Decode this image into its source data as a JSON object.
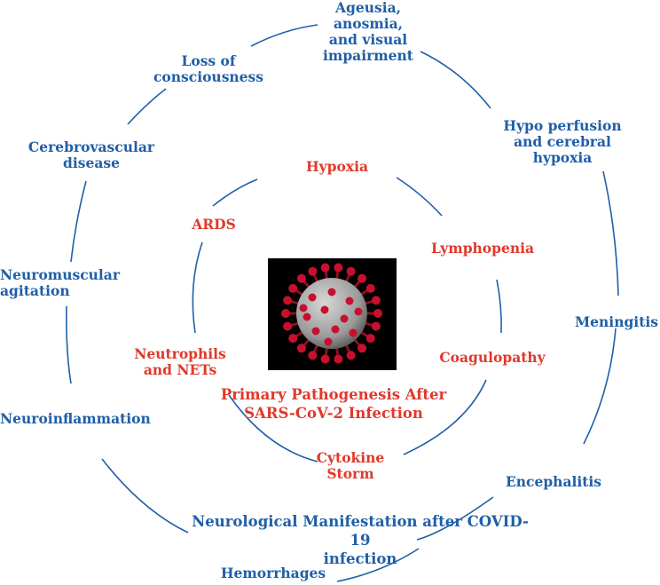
{
  "outer_labels": [
    {
      "key": "ageusia",
      "text": "Ageusia,\nanosmia,\nand visual\nimpairment"
    },
    {
      "key": "loss-consciousness",
      "text": "Loss of\nconsciousness"
    },
    {
      "key": "hypoperfusion",
      "text": "Hypo perfusion\nand cerebral\nhypoxia"
    },
    {
      "key": "cerebrovascular",
      "text": "Cerebrovascular\ndisease"
    },
    {
      "key": "neuromuscular",
      "text": "Neuromuscular\nagitation"
    },
    {
      "key": "meningitis",
      "text": "Meningitis"
    },
    {
      "key": "neuroinflammation",
      "text": "Neuroinflammation"
    },
    {
      "key": "encephalitis",
      "text": "Encephalitis"
    },
    {
      "key": "hemorrhages",
      "text": "Hemorrhages"
    }
  ],
  "outer_title": "Neurological Manifestation after COVID-19\ninfection",
  "inner_labels": [
    {
      "key": "hypoxia",
      "text": "Hypoxia"
    },
    {
      "key": "ards",
      "text": "ARDS"
    },
    {
      "key": "lymphopenia",
      "text": "Lymphopenia"
    },
    {
      "key": "neutrophils",
      "text": "Neutrophils\nand NETs"
    },
    {
      "key": "coagulopathy",
      "text": "Coagulopathy"
    },
    {
      "key": "cytokine-storm",
      "text": "Cytokine\nStorm"
    }
  ],
  "inner_title": "Primary Pathogenesis After\nSARS-CoV-2 Infection",
  "colors": {
    "outer": "#1f5fa8",
    "inner": "#e0392b",
    "virus_body": "#9a9a9a",
    "virus_spike": "#c8102e"
  }
}
